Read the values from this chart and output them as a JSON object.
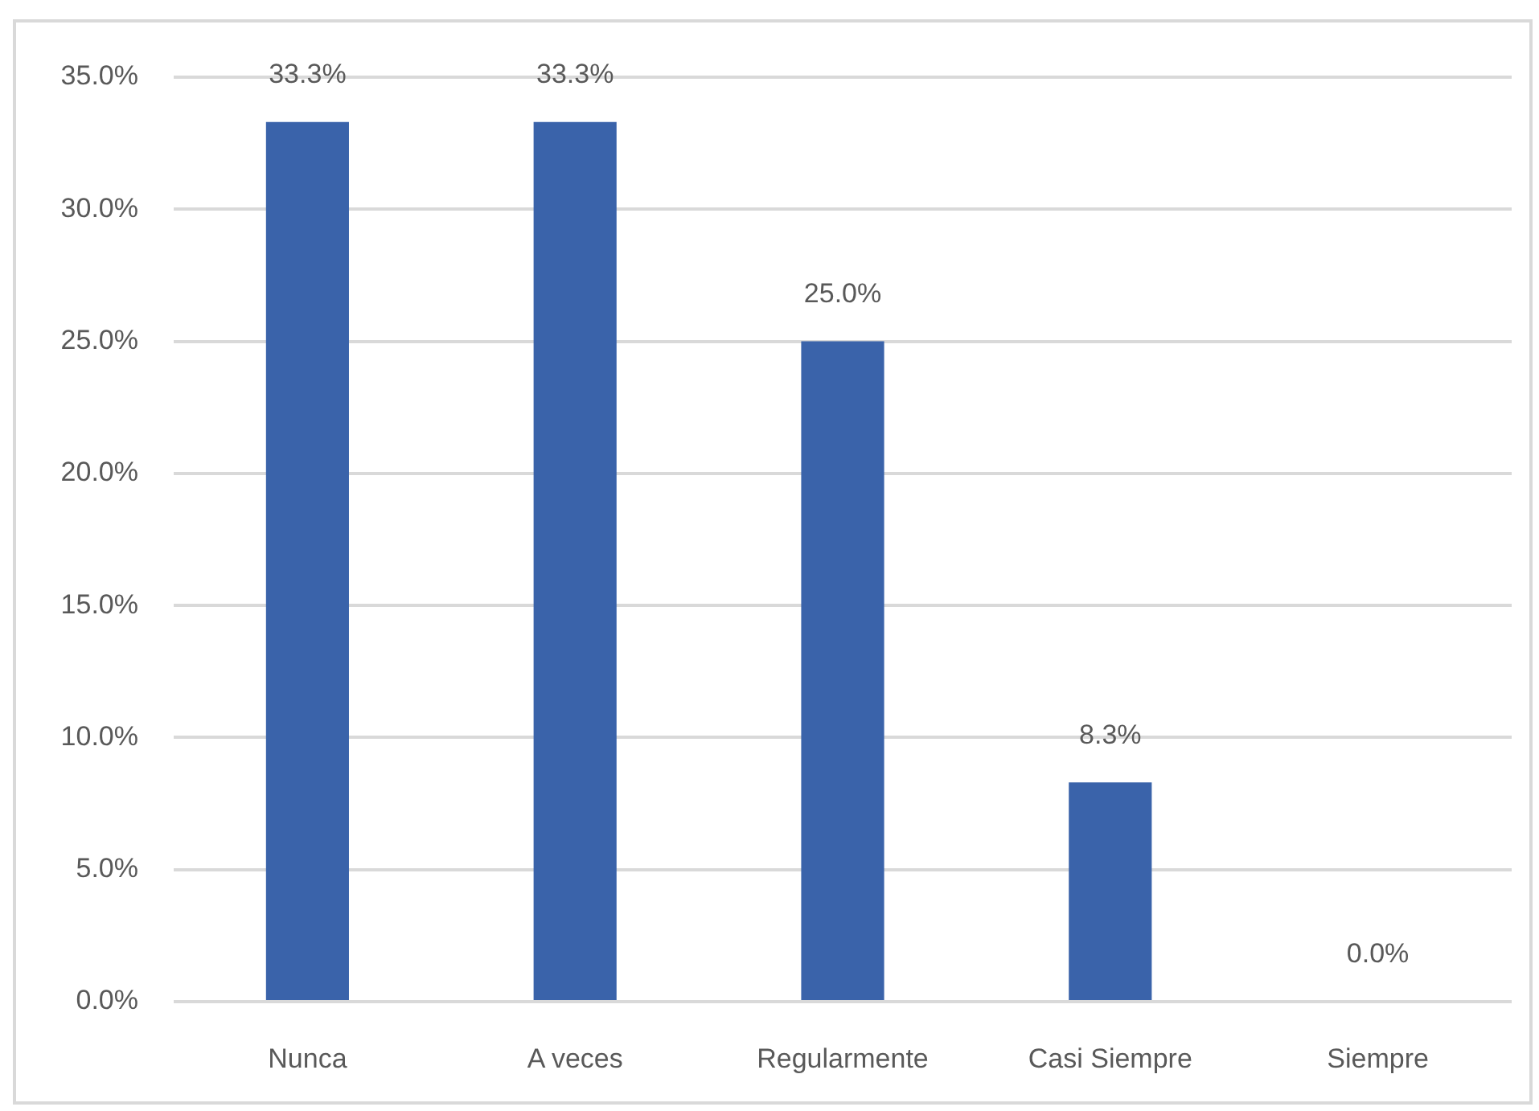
{
  "chart_data": {
    "type": "bar",
    "categories": [
      "Nunca",
      "A veces",
      "Regularmente",
      "Casi Siempre",
      "Siempre"
    ],
    "values": [
      33.3,
      33.3,
      25.0,
      8.3,
      0.0
    ],
    "color": "#3a63aa",
    "value_labels": [
      "33.3%",
      "33.3%",
      "25.0%",
      "8.3%",
      "0.0%"
    ],
    "ylim": [
      0,
      35
    ],
    "yticks": [
      {
        "value": 0,
        "label": "0.0%"
      },
      {
        "value": 5,
        "label": "5.0%"
      },
      {
        "value": 10,
        "label": "10.0%"
      },
      {
        "value": 15,
        "label": "15.0%"
      },
      {
        "value": 20,
        "label": "20.0%"
      },
      {
        "value": 25,
        "label": "25.0%"
      },
      {
        "value": 30,
        "label": "30.0%"
      },
      {
        "value": 35,
        "label": "35.0%"
      }
    ],
    "grid": "y"
  }
}
